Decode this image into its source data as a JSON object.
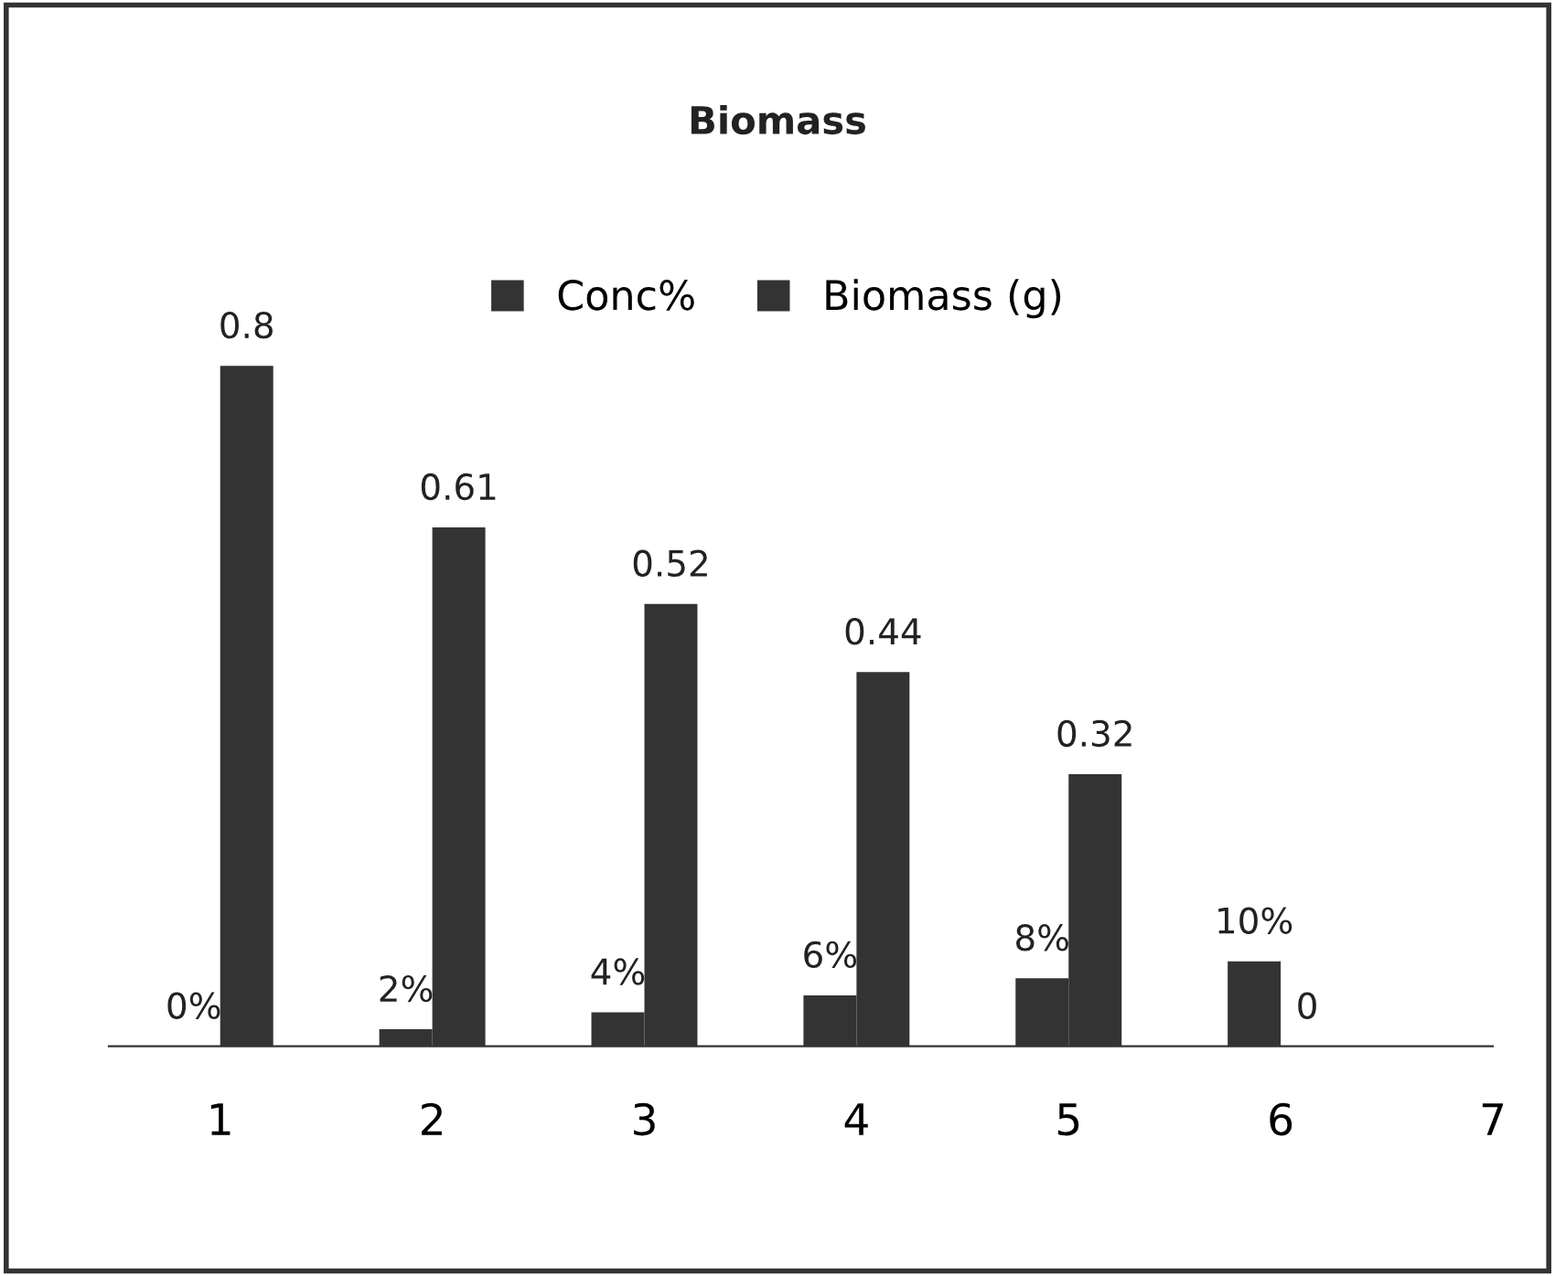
{
  "chart_data": {
    "type": "bar",
    "title": "Biomass",
    "categories": [
      "1",
      "2",
      "3",
      "4",
      "5",
      "6",
      "7"
    ],
    "series": [
      {
        "name": "Conc%",
        "color": "#333333",
        "values": [
          0,
          0.02,
          0.04,
          0.06,
          0.08,
          0.1,
          null
        ],
        "value_labels": [
          "0%",
          "2%",
          "4%",
          "6%",
          "8%",
          "10%",
          null
        ]
      },
      {
        "name": "Biomass (g)",
        "color": "#333333",
        "values": [
          0.8,
          0.61,
          0.52,
          0.44,
          0.32,
          0,
          null
        ],
        "value_labels": [
          "0.8",
          "0.61",
          "0.52",
          "0.44",
          "0.32",
          "0",
          null
        ]
      }
    ],
    "legend": "top",
    "grid": false,
    "tick_labels": "x"
  }
}
